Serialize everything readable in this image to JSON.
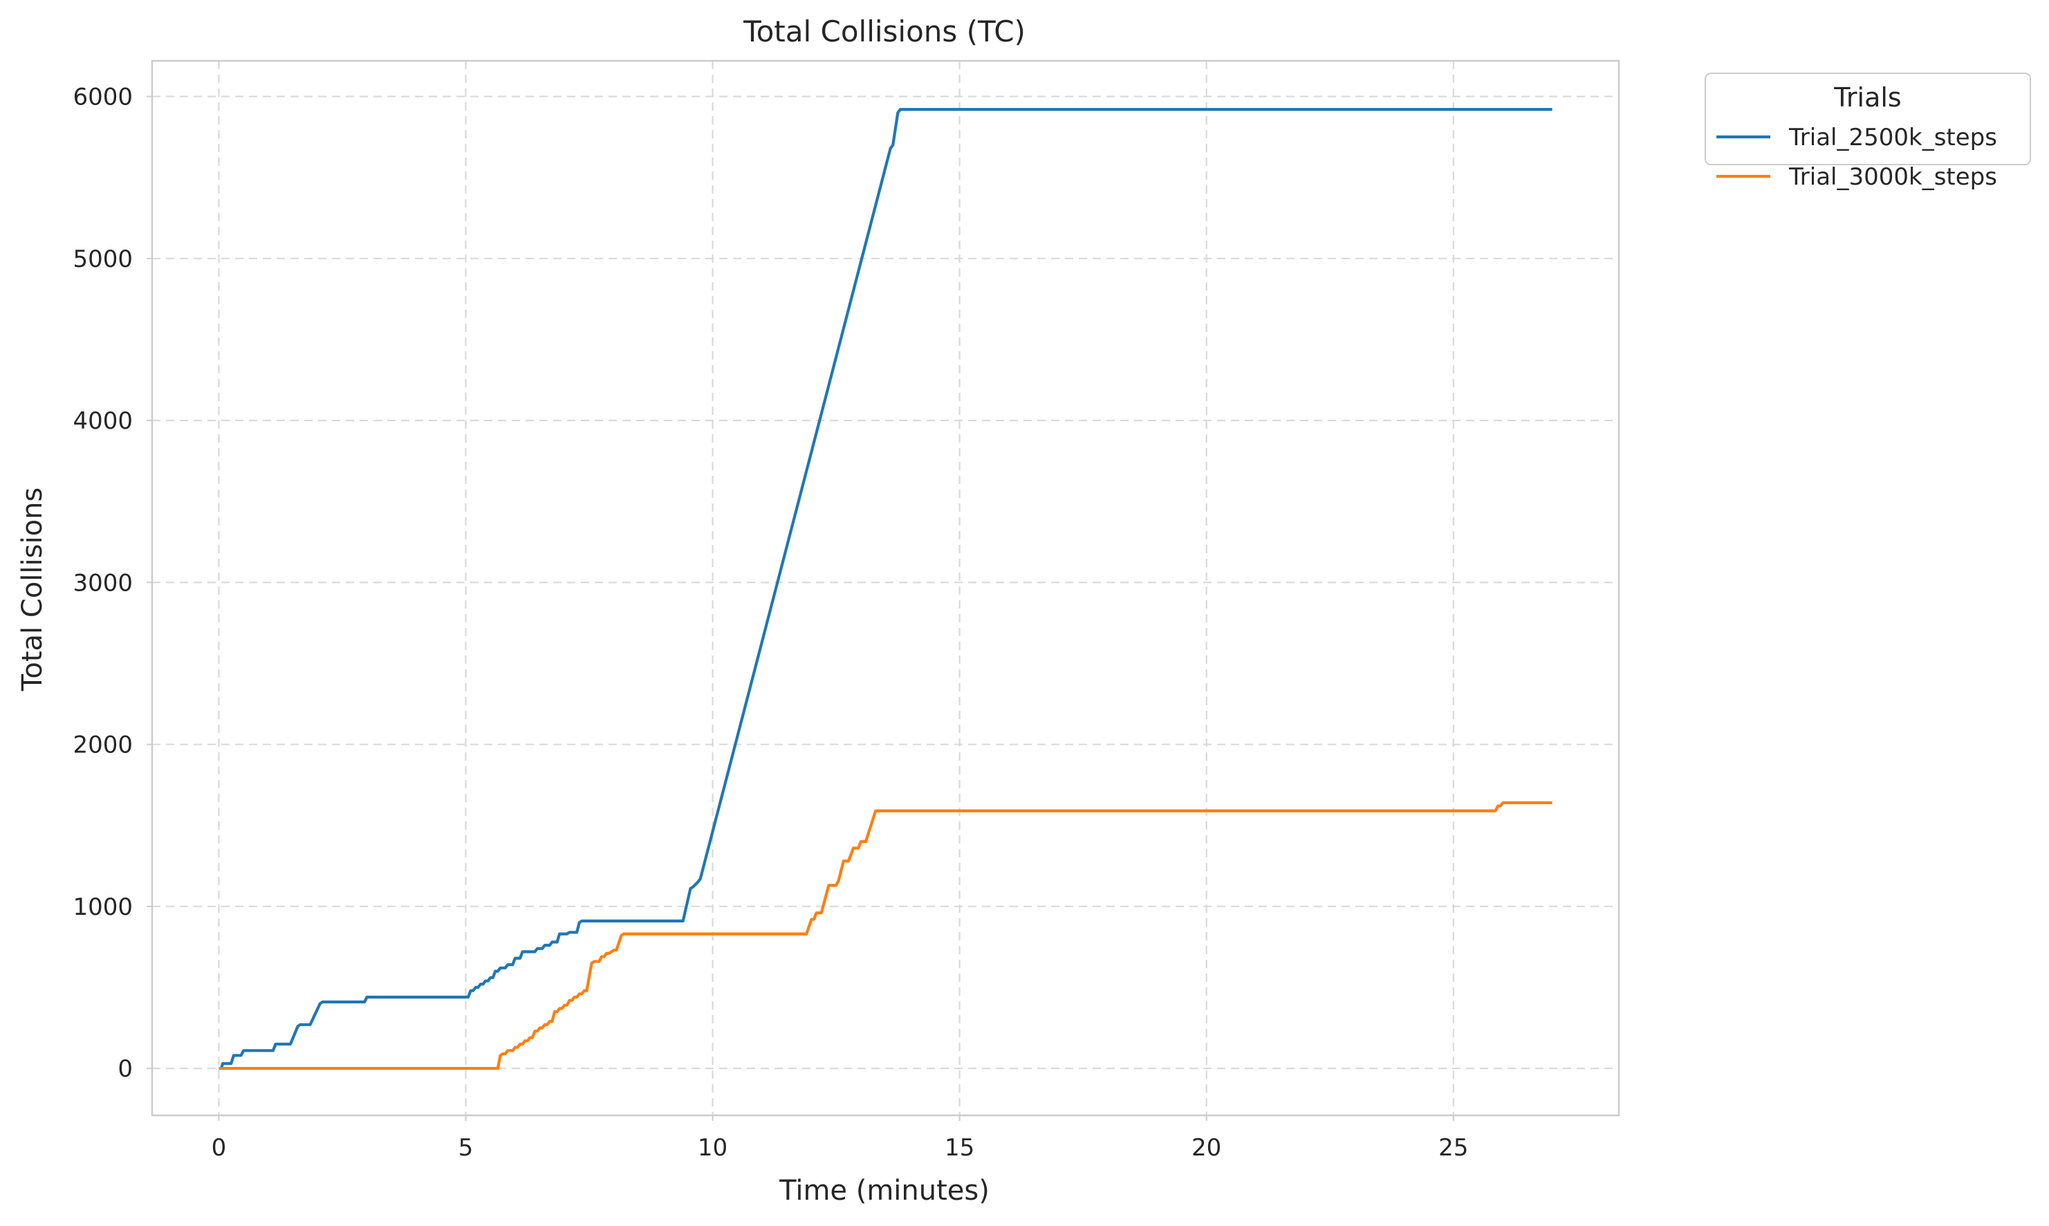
{
  "chart_data": {
    "type": "line",
    "title": "Total Collisions (TC)",
    "xlabel": "Time (minutes)",
    "ylabel": "Total Collisions",
    "xlim": [
      -1.35,
      28.35
    ],
    "ylim": [
      -290,
      6220
    ],
    "xticks": [
      0,
      5,
      10,
      15,
      20,
      25
    ],
    "yticks": [
      0,
      1000,
      2000,
      3000,
      4000,
      5000,
      6000
    ],
    "grid": true,
    "legend": {
      "title": "Trials",
      "placement": "outside-top-right"
    },
    "series": [
      {
        "name": "Trial_2500k_steps",
        "color": "#1f77b4",
        "points": [
          [
            0,
            0
          ],
          [
            0.05,
            0
          ],
          [
            0.08,
            30
          ],
          [
            0.25,
            30
          ],
          [
            0.3,
            80
          ],
          [
            0.45,
            80
          ],
          [
            0.5,
            110
          ],
          [
            1.1,
            110
          ],
          [
            1.15,
            150
          ],
          [
            1.45,
            150
          ],
          [
            1.6,
            260
          ],
          [
            1.65,
            270
          ],
          [
            1.85,
            270
          ],
          [
            2.05,
            400
          ],
          [
            2.1,
            410
          ],
          [
            2.95,
            410
          ],
          [
            3.0,
            440
          ],
          [
            5.05,
            440
          ],
          [
            5.1,
            480
          ],
          [
            5.15,
            480
          ],
          [
            5.2,
            500
          ],
          [
            5.25,
            500
          ],
          [
            5.3,
            520
          ],
          [
            5.35,
            520
          ],
          [
            5.4,
            540
          ],
          [
            5.45,
            540
          ],
          [
            5.5,
            560
          ],
          [
            5.55,
            560
          ],
          [
            5.6,
            600
          ],
          [
            5.65,
            600
          ],
          [
            5.7,
            620
          ],
          [
            5.8,
            620
          ],
          [
            5.85,
            640
          ],
          [
            5.95,
            640
          ],
          [
            6.0,
            680
          ],
          [
            6.1,
            680
          ],
          [
            6.15,
            720
          ],
          [
            6.4,
            720
          ],
          [
            6.45,
            740
          ],
          [
            6.55,
            740
          ],
          [
            6.6,
            760
          ],
          [
            6.7,
            760
          ],
          [
            6.75,
            780
          ],
          [
            6.85,
            780
          ],
          [
            6.9,
            830
          ],
          [
            7.05,
            830
          ],
          [
            7.1,
            840
          ],
          [
            7.25,
            840
          ],
          [
            7.3,
            900
          ],
          [
            7.35,
            910
          ],
          [
            9.4,
            910
          ],
          [
            9.55,
            1110
          ],
          [
            9.6,
            1120
          ],
          [
            9.7,
            1150
          ],
          [
            9.75,
            1170
          ],
          [
            13.6,
            5680
          ],
          [
            13.65,
            5700
          ],
          [
            13.75,
            5900
          ],
          [
            13.8,
            5920
          ],
          [
            27.0,
            5920
          ]
        ]
      },
      {
        "name": "Trial_3000k_steps",
        "color": "#ff7f0e",
        "points": [
          [
            0,
            0
          ],
          [
            5.65,
            0
          ],
          [
            5.7,
            80
          ],
          [
            5.75,
            90
          ],
          [
            5.8,
            90
          ],
          [
            5.85,
            110
          ],
          [
            5.95,
            110
          ],
          [
            6.0,
            130
          ],
          [
            6.05,
            130
          ],
          [
            6.1,
            150
          ],
          [
            6.15,
            150
          ],
          [
            6.2,
            170
          ],
          [
            6.25,
            170
          ],
          [
            6.3,
            190
          ],
          [
            6.35,
            190
          ],
          [
            6.4,
            230
          ],
          [
            6.45,
            230
          ],
          [
            6.5,
            250
          ],
          [
            6.55,
            250
          ],
          [
            6.6,
            270
          ],
          [
            6.65,
            270
          ],
          [
            6.7,
            290
          ],
          [
            6.75,
            290
          ],
          [
            6.8,
            350
          ],
          [
            6.85,
            350
          ],
          [
            6.9,
            370
          ],
          [
            6.95,
            370
          ],
          [
            7.0,
            390
          ],
          [
            7.05,
            390
          ],
          [
            7.1,
            420
          ],
          [
            7.15,
            420
          ],
          [
            7.2,
            440
          ],
          [
            7.25,
            440
          ],
          [
            7.3,
            460
          ],
          [
            7.35,
            460
          ],
          [
            7.4,
            480
          ],
          [
            7.45,
            480
          ],
          [
            7.55,
            650
          ],
          [
            7.6,
            660
          ],
          [
            7.7,
            660
          ],
          [
            7.75,
            690
          ],
          [
            7.8,
            690
          ],
          [
            7.85,
            710
          ],
          [
            7.9,
            710
          ],
          [
            8.0,
            730
          ],
          [
            8.05,
            730
          ],
          [
            8.15,
            820
          ],
          [
            8.2,
            830
          ],
          [
            11.9,
            830
          ],
          [
            12.0,
            920
          ],
          [
            12.05,
            920
          ],
          [
            12.1,
            960
          ],
          [
            12.2,
            960
          ],
          [
            12.35,
            1130
          ],
          [
            12.5,
            1130
          ],
          [
            12.55,
            1160
          ],
          [
            12.65,
            1280
          ],
          [
            12.75,
            1280
          ],
          [
            12.85,
            1360
          ],
          [
            12.95,
            1360
          ],
          [
            13.0,
            1400
          ],
          [
            13.1,
            1400
          ],
          [
            13.3,
            1590
          ],
          [
            25.85,
            1590
          ],
          [
            25.9,
            1620
          ],
          [
            25.95,
            1620
          ],
          [
            26.0,
            1640
          ],
          [
            27.0,
            1640
          ]
        ]
      }
    ]
  }
}
